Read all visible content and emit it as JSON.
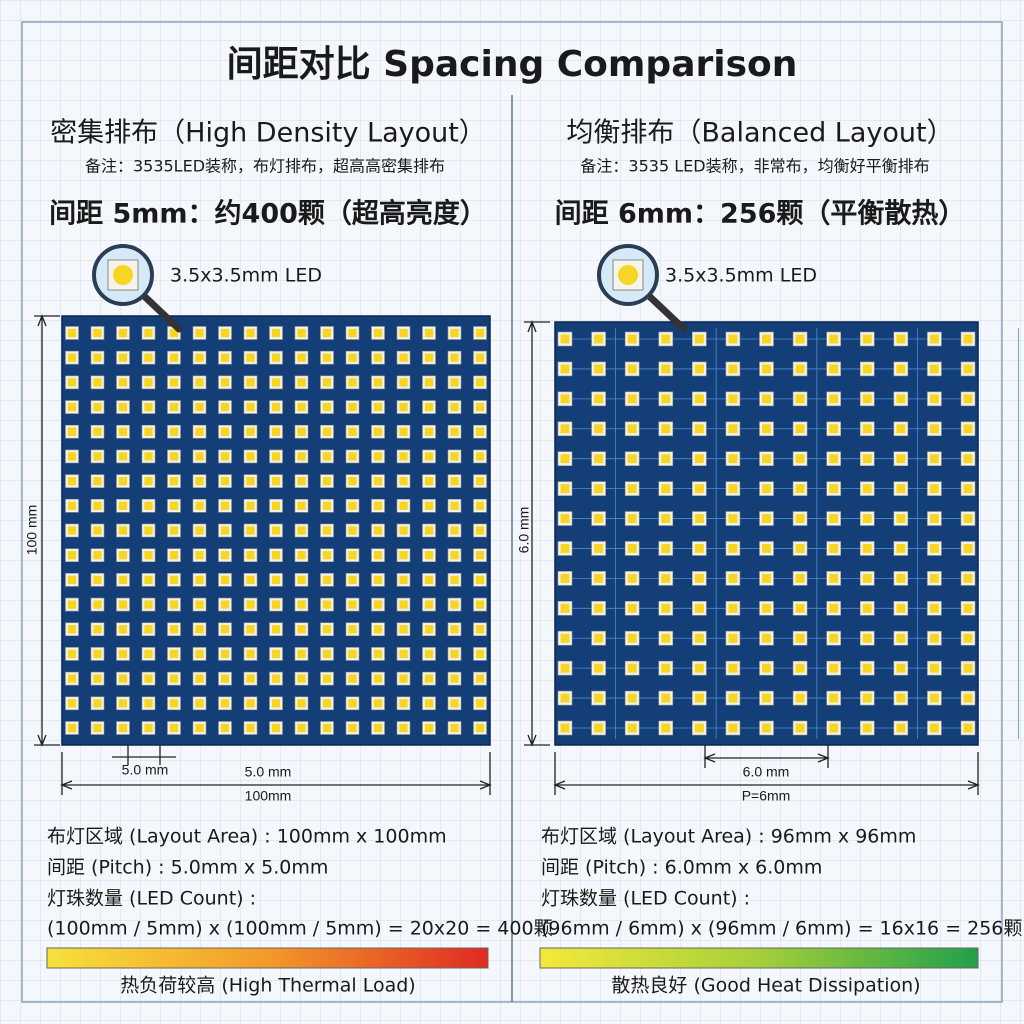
{
  "title": "间距对比 Spacing Comparison",
  "panels": [
    {
      "heading": "密集排布（High Density Layout）",
      "note": "备注：3535LED装称，布灯排布，超高高密集排布",
      "spacing": "间距 5mm：约400颗（超高亮度）",
      "led_label": "3.5x3.5mm LED",
      "side_dim": "100 mm",
      "pitch_dim": "5.0 mm",
      "pitch_dim_2": "5.0 mm",
      "width_dim": "100mm",
      "specs": [
        "布灯区域 (Layout Area) : 100mm x 100mm",
        "间距 (Pitch) : 5.0mm x 5.0mm",
        "灯珠数量 (LED Count) :",
        "(100mm / 5mm) x (100mm / 5mm) = 20x20 = 400颗"
      ],
      "bar_label": "热负荷较高 (High Thermal Load)"
    },
    {
      "heading": "均衡排布（Balanced Layout）",
      "note": "备注：3535 LED装称，非常布，均衡好平衡排布",
      "spacing": "间距 6mm：256颗（平衡散热）",
      "led_label": "3.5x3.5mm LED",
      "side_dim": "6.0 mm",
      "pitch_dim": "6.0 mm",
      "width_dim": "P=6mm",
      "specs": [
        "布灯区域 (Layout Area) : 96mm x 96mm",
        "间距 (Pitch) : 6.0mm x 6.0mm",
        "灯珠数量 (LED Count) :",
        "(96mm / 6mm) x (96mm / 6mm) = 16x16 = 256颗"
      ],
      "bar_label": "散热良好 (Good Heat Dissipation)"
    }
  ]
}
